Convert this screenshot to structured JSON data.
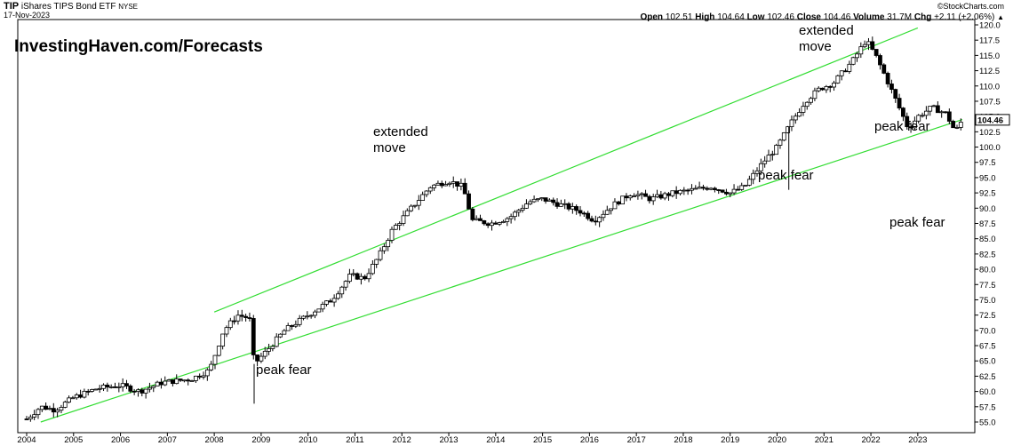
{
  "header": {
    "symbol": "TIP",
    "name": "iShares TIPS Bond ETF",
    "exchange": "NYSE",
    "date": "17-Nov-2023",
    "source": "©StockCharts.com",
    "quote": {
      "open_label": "Open",
      "open": "102.51",
      "high_label": "High",
      "high": "104.64",
      "low_label": "Low",
      "low": "102.46",
      "close_label": "Close",
      "close": "104.46",
      "volume_label": "Volume",
      "volume": "31.7M",
      "chg_label": "Chg",
      "chg": "+2.11 (+2.06%)",
      "arrow": "▲"
    }
  },
  "watermark": "InvestingHaven.com/Forecasts",
  "annotations": {
    "extended_2012": [
      "extended",
      "move"
    ],
    "extended_2021": [
      "extended",
      "move"
    ],
    "peak_fear_2009": "peak fear",
    "peak_fear_2020": "peak fear",
    "peak_fear_2022": "peak fear",
    "peak_fear_right": "peak fear"
  },
  "chart_data": {
    "type": "candlestick",
    "x_ticks": [
      "2004",
      "2005",
      "2006",
      "2007",
      "2008",
      "2009",
      "2010",
      "2011",
      "2012",
      "2013",
      "2014",
      "2015",
      "2016",
      "2017",
      "2018",
      "2019",
      "2020",
      "2021",
      "2022",
      "2023"
    ],
    "y_ticks": [
      "55.0",
      "57.5",
      "60.0",
      "62.5",
      "65.0",
      "67.5",
      "70.0",
      "72.5",
      "75.0",
      "77.5",
      "80.0",
      "82.5",
      "85.0",
      "87.5",
      "90.0",
      "92.5",
      "95.0",
      "97.5",
      "100.0",
      "102.5",
      "105.0",
      "107.5",
      "110.0",
      "112.5",
      "115.0",
      "117.5",
      "120.0"
    ],
    "ylim": [
      55.0,
      120.0
    ],
    "xlim": [
      2004.0,
      2023.95
    ],
    "last_value_label": "104.46",
    "last_value": 104.46,
    "grid": false,
    "path_points": [
      [
        2004.0,
        55.5
      ],
      [
        2004.3,
        57.5
      ],
      [
        2004.6,
        57.0
      ],
      [
        2005.0,
        59.0
      ],
      [
        2005.5,
        60.5
      ],
      [
        2006.0,
        61.0
      ],
      [
        2006.4,
        60.0
      ],
      [
        2006.9,
        61.5
      ],
      [
        2007.5,
        62.0
      ],
      [
        2007.9,
        63.5
      ],
      [
        2008.2,
        70.0
      ],
      [
        2008.5,
        72.5
      ],
      [
        2008.75,
        72.0
      ],
      [
        2008.85,
        64.5
      ],
      [
        2009.1,
        66.5
      ],
      [
        2009.5,
        70.0
      ],
      [
        2010.0,
        72.5
      ],
      [
        2010.5,
        75.0
      ],
      [
        2010.9,
        79.0
      ],
      [
        2011.2,
        78.5
      ],
      [
        2011.5,
        82.0
      ],
      [
        2011.8,
        86.5
      ],
      [
        2012.2,
        90.0
      ],
      [
        2012.6,
        93.5
      ],
      [
        2013.0,
        94.5
      ],
      [
        2013.3,
        93.5
      ],
      [
        2013.5,
        88.0
      ],
      [
        2013.9,
        87.5
      ],
      [
        2014.3,
        88.5
      ],
      [
        2014.7,
        91.0
      ],
      [
        2015.0,
        91.5
      ],
      [
        2015.4,
        90.5
      ],
      [
        2015.8,
        89.5
      ],
      [
        2016.1,
        88.0
      ],
      [
        2016.5,
        90.5
      ],
      [
        2016.9,
        92.5
      ],
      [
        2017.3,
        91.5
      ],
      [
        2017.8,
        92.5
      ],
      [
        2018.2,
        93.0
      ],
      [
        2018.6,
        93.5
      ],
      [
        2019.0,
        92.5
      ],
      [
        2019.3,
        93.5
      ],
      [
        2019.7,
        97.5
      ],
      [
        2020.0,
        100.0
      ],
      [
        2020.3,
        104.0
      ],
      [
        2020.6,
        107.5
      ],
      [
        2020.9,
        109.5
      ],
      [
        2021.2,
        110.5
      ],
      [
        2021.6,
        114.0
      ],
      [
        2021.9,
        117.5
      ],
      [
        2022.1,
        115.0
      ],
      [
        2022.4,
        110.0
      ],
      [
        2022.6,
        106.5
      ],
      [
        2022.8,
        103.0
      ],
      [
        2023.0,
        105.0
      ],
      [
        2023.3,
        106.5
      ],
      [
        2023.6,
        105.5
      ],
      [
        2023.8,
        102.5
      ],
      [
        2023.95,
        104.46
      ]
    ],
    "wick_spikes": [
      {
        "x": 2008.85,
        "low": 58.0
      },
      {
        "x": 2020.25,
        "low": 93.0
      }
    ],
    "channel_upper": [
      [
        2008.0,
        73.0
      ],
      [
        2023.0,
        119.5
      ]
    ],
    "channel_lower": [
      [
        2004.3,
        55.0
      ],
      [
        2023.95,
        104.5
      ]
    ]
  }
}
